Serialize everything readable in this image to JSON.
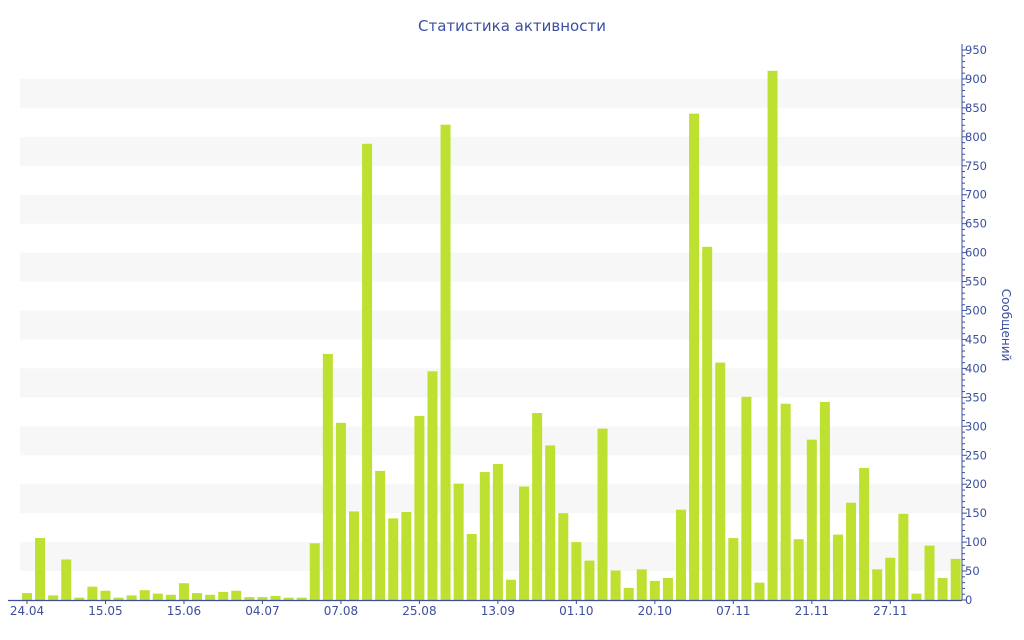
{
  "chart_data": {
    "type": "bar",
    "title": "Статистика активности",
    "xlabel": "",
    "ylabel": "Сообщений",
    "ylim": [
      0,
      950
    ],
    "y_ticks": [
      0,
      50,
      100,
      150,
      200,
      250,
      300,
      350,
      400,
      450,
      500,
      550,
      600,
      650,
      700,
      750,
      800,
      850,
      900,
      950
    ],
    "x_tick_labels": [
      {
        "index": 0,
        "label": "24.04"
      },
      {
        "index": 6,
        "label": "15.05"
      },
      {
        "index": 12,
        "label": "15.06"
      },
      {
        "index": 18,
        "label": "04.07"
      },
      {
        "index": 24,
        "label": "07.08"
      },
      {
        "index": 30,
        "label": "25.08"
      },
      {
        "index": 36,
        "label": "13.09"
      },
      {
        "index": 42,
        "label": "01.10"
      },
      {
        "index": 48,
        "label": "20.10"
      },
      {
        "index": 54,
        "label": "07.11"
      },
      {
        "index": 60,
        "label": "21.11"
      },
      {
        "index": 66,
        "label": "27.11"
      }
    ],
    "values": [
      12,
      107,
      8,
      70,
      4,
      23,
      16,
      4,
      8,
      17,
      11,
      9,
      29,
      12,
      9,
      14,
      16,
      5,
      5,
      7,
      4,
      4,
      98,
      425,
      306,
      153,
      788,
      223,
      141,
      152,
      318,
      395,
      821,
      201,
      114,
      221,
      235,
      35,
      196,
      323,
      267,
      150,
      100,
      68,
      296,
      51,
      21,
      53,
      33,
      38,
      156,
      840,
      610,
      410,
      107,
      351,
      30,
      914,
      339,
      105,
      277,
      342,
      113,
      168,
      228,
      53,
      73,
      149,
      11,
      94,
      38,
      71
    ],
    "grid": "alternating horizontal bands",
    "legend": "none",
    "colors": {
      "bar": "#bde031",
      "axis": "#3b4f9e",
      "band": "#f7f7f7"
    }
  }
}
